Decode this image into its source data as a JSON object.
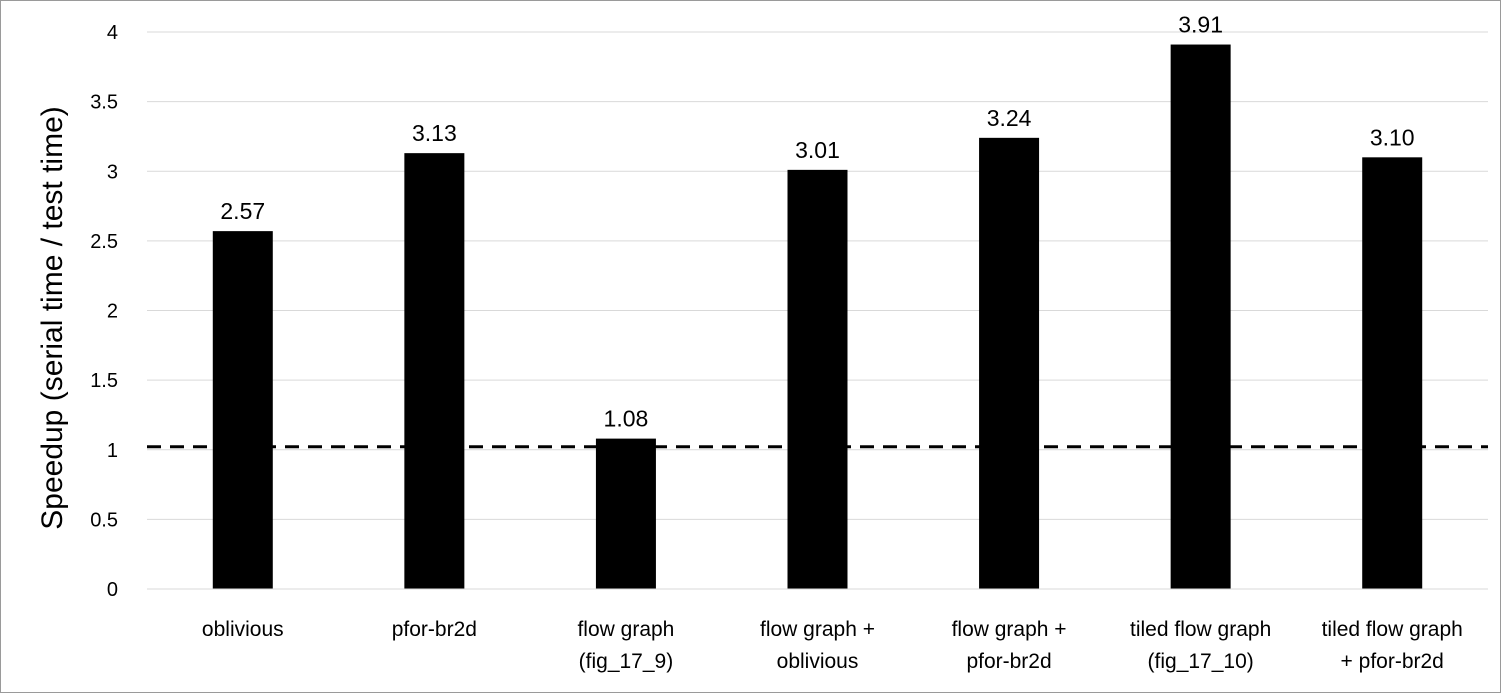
{
  "chart_data": {
    "type": "bar",
    "categories": [
      [
        "oblivious"
      ],
      [
        "pfor-br2d"
      ],
      [
        "flow graph",
        "(fig_17_9)"
      ],
      [
        "flow graph +",
        "oblivious"
      ],
      [
        "flow graph +",
        "pfor-br2d"
      ],
      [
        "tiled flow graph",
        "(fig_17_10)"
      ],
      [
        "tiled flow graph",
        "+ pfor-br2d"
      ]
    ],
    "values": [
      2.57,
      3.13,
      1.08,
      3.01,
      3.24,
      3.91,
      3.1
    ],
    "data_labels": [
      "2.57",
      "3.13",
      "1.08",
      "3.01",
      "3.24",
      "3.91",
      "3.10"
    ],
    "ylabel": "Speedup (serial time / test time)",
    "ylim": [
      0,
      4
    ],
    "yticks": [
      "0",
      "0.5",
      "1",
      "1.5",
      "2",
      "2.5",
      "3",
      "3.5",
      "4"
    ],
    "reference_line": {
      "value": 1,
      "style": "dashed"
    },
    "bar_color": "#000000",
    "grid": true,
    "grid_color": "#d9d9d9"
  }
}
